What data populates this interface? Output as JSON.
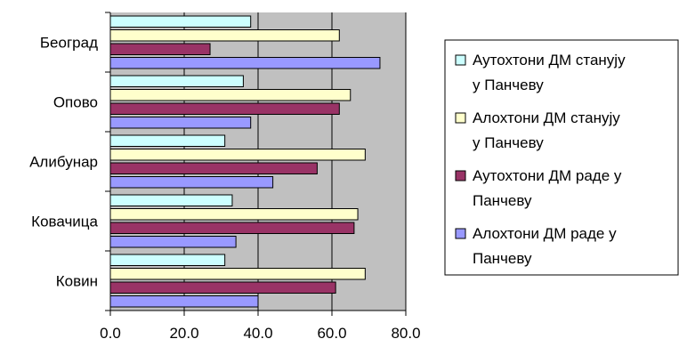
{
  "chart_data": {
    "type": "bar",
    "orientation": "horizontal",
    "categories": [
      "Београд",
      "Опово",
      "Алибунар",
      "Ковачица",
      "Ковин"
    ],
    "x_tick_labels": [
      "0.0",
      "20.0",
      "40.0",
      "60.0",
      "80.0"
    ],
    "xlim": [
      0,
      80
    ],
    "grid": true,
    "legend_position": "right",
    "series": [
      {
        "name": "Аутохтони ДМ станују у Панчеву",
        "color": "#ccffff",
        "values": [
          38,
          36,
          31,
          33,
          31
        ]
      },
      {
        "name": "Алохтони ДМ станују у Панчеву",
        "color": "#ffffcc",
        "values": [
          62,
          65,
          69,
          67,
          69
        ]
      },
      {
        "name": "Аутохтони ДМ раде у Панчеву",
        "color": "#993366",
        "values": [
          27,
          62,
          56,
          66,
          61
        ]
      },
      {
        "name": "Алохтони ДМ раде у Панчеву",
        "color": "#9999ff",
        "values": [
          73,
          38,
          44,
          34,
          40
        ]
      }
    ],
    "legend_lines": [
      [
        "Аутохтони ДМ станују",
        "у Панчеву"
      ],
      [
        "Алохтони ДМ станују",
        "у Панчеву"
      ],
      [
        "Аутохтони ДМ раде у",
        "Панчеву"
      ],
      [
        "Алохтони ДМ раде у",
        "Панчеву"
      ]
    ],
    "plot_background": "#c0c0c0"
  }
}
